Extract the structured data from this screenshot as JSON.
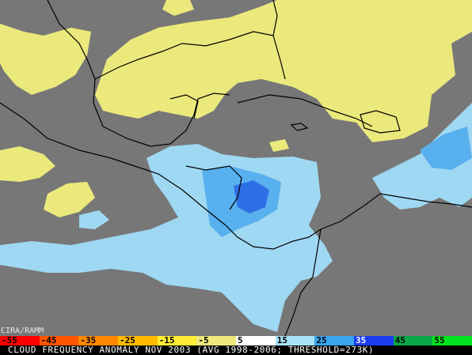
{
  "credit": "CIRA/RAMM",
  "caption": "CLOUD FREQUENCY ANOMALY NOV 2003 (AVG 1998-2006; THRESHOLD=273K)",
  "colorbar": {
    "labels": [
      "-55",
      "-45",
      "-35",
      "-25",
      "-15",
      "-5",
      "5",
      "15",
      "25",
      "35",
      "45",
      "55"
    ],
    "colors": [
      "#ff0000",
      "#ff5500",
      "#ff8800",
      "#ffbb00",
      "#ffee33",
      "#eee87a",
      "#ffffff",
      "#a8e2f6",
      "#38a6f0",
      "#1a3cf0",
      "#0aa84a",
      "#00e61e"
    ],
    "text_colors": [
      "#000",
      "#000",
      "#000",
      "#000",
      "#000",
      "#000",
      "#000",
      "#000",
      "#000",
      "#fff",
      "#000",
      "#000"
    ]
  },
  "colors": {
    "background_gray": "#777777",
    "positive_anomaly_yellow": "#ebe97c",
    "negative_anomaly_lightblue": "#9fd8f2",
    "negative_anomaly_midblue": "#58b0ee",
    "negative_anomaly_darkblue": "#2f6fe6",
    "coastline": "#000000"
  }
}
